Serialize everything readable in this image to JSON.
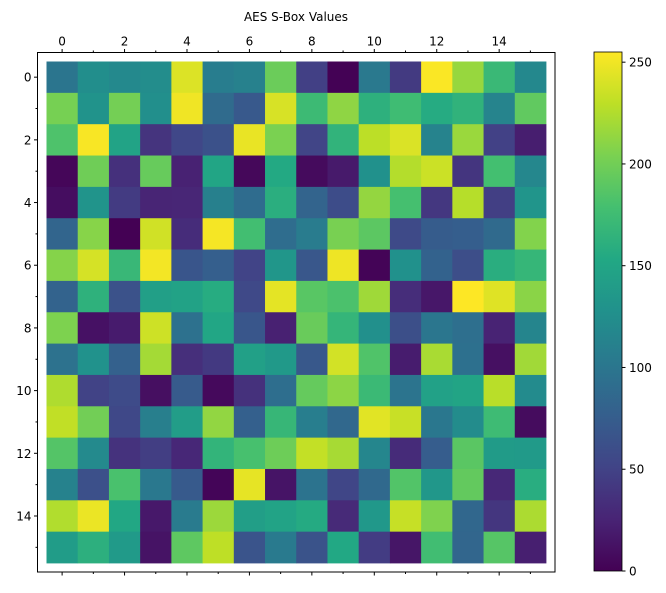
{
  "chart_data": {
    "type": "heatmap",
    "title": "AES S-Box Values",
    "xlabel": "",
    "ylabel": "",
    "colormap": "viridis",
    "vmin": 0,
    "vmax": 255,
    "x_tick_labels": [
      "0",
      "2",
      "4",
      "6",
      "8",
      "10",
      "12",
      "14"
    ],
    "y_tick_labels": [
      "0",
      "2",
      "4",
      "6",
      "8",
      "10",
      "12",
      "14"
    ],
    "colorbar_tick_labels": [
      "0",
      "50",
      "100",
      "150",
      "200",
      "250"
    ],
    "colorbar_ticks": [
      0,
      50,
      100,
      150,
      200,
      250
    ],
    "values": [
      [
        99,
        124,
        119,
        123,
        242,
        107,
        111,
        197,
        48,
        1,
        103,
        43,
        254,
        215,
        171,
        118
      ],
      [
        202,
        130,
        201,
        125,
        250,
        89,
        71,
        240,
        173,
        212,
        162,
        175,
        156,
        164,
        114,
        192
      ],
      [
        183,
        253,
        147,
        38,
        54,
        63,
        247,
        204,
        52,
        165,
        229,
        241,
        113,
        216,
        49,
        21
      ],
      [
        4,
        199,
        35,
        195,
        24,
        150,
        5,
        154,
        7,
        18,
        128,
        226,
        235,
        39,
        178,
        117
      ],
      [
        9,
        131,
        44,
        26,
        27,
        110,
        90,
        160,
        82,
        59,
        214,
        179,
        41,
        227,
        47,
        132
      ],
      [
        83,
        209,
        0,
        237,
        32,
        252,
        177,
        91,
        106,
        203,
        190,
        57,
        74,
        76,
        88,
        207
      ],
      [
        208,
        239,
        170,
        251,
        67,
        77,
        51,
        133,
        69,
        249,
        2,
        127,
        80,
        60,
        159,
        168
      ],
      [
        81,
        163,
        64,
        143,
        146,
        157,
        56,
        245,
        188,
        182,
        218,
        33,
        16,
        255,
        243,
        210
      ],
      [
        205,
        12,
        19,
        236,
        95,
        151,
        68,
        23,
        196,
        167,
        126,
        61,
        100,
        93,
        25,
        115
      ],
      [
        96,
        129,
        79,
        220,
        34,
        42,
        144,
        136,
        70,
        238,
        184,
        20,
        222,
        94,
        11,
        219
      ],
      [
        224,
        50,
        58,
        10,
        73,
        6,
        36,
        92,
        194,
        211,
        172,
        98,
        145,
        149,
        228,
        121
      ],
      [
        231,
        200,
        55,
        109,
        141,
        213,
        78,
        169,
        108,
        86,
        244,
        234,
        101,
        122,
        174,
        8
      ],
      [
        186,
        120,
        37,
        46,
        28,
        166,
        180,
        198,
        232,
        221,
        116,
        31,
        75,
        189,
        139,
        138
      ],
      [
        112,
        62,
        181,
        102,
        72,
        3,
        246,
        14,
        97,
        53,
        87,
        185,
        134,
        193,
        29,
        158
      ],
      [
        225,
        248,
        152,
        17,
        105,
        217,
        142,
        148,
        155,
        30,
        135,
        233,
        206,
        85,
        40,
        223
      ],
      [
        140,
        161,
        137,
        13,
        191,
        230,
        66,
        104,
        65,
        153,
        45,
        15,
        176,
        84,
        187,
        22
      ]
    ]
  }
}
